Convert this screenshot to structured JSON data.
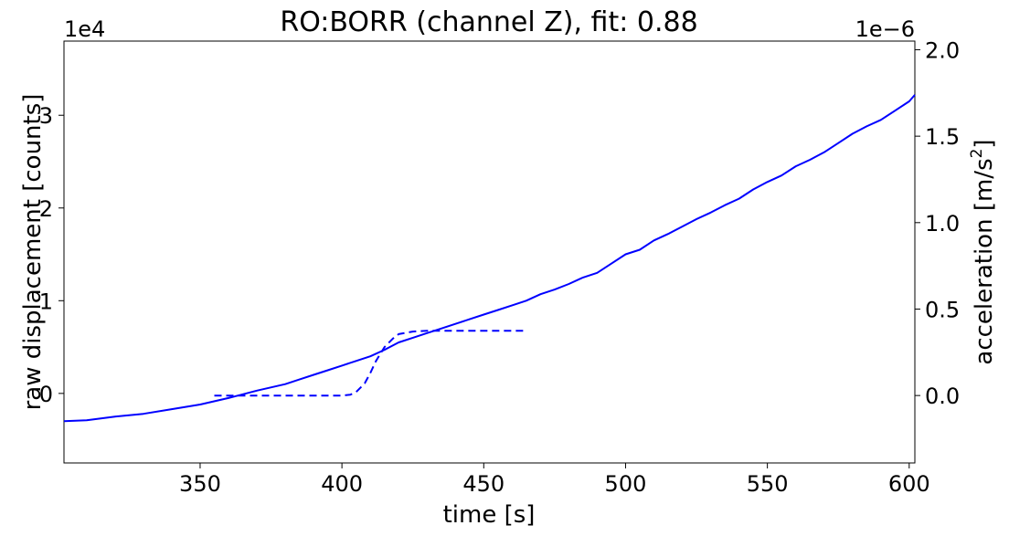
{
  "chart_data": {
    "type": "line",
    "title": "RO:BORR  (channel Z), fit: 0.88",
    "xlabel": "time [s]",
    "ylabel_left": "raw displacement [counts]",
    "ylabel_right_prefix": "acceleration [m/s",
    "ylabel_right_sup": "2",
    "ylabel_right_suffix": "]",
    "left_offset_label": "1e4",
    "right_offset_label": "1e−6",
    "xlim": [
      302,
      602
    ],
    "ylim_left": [
      -0.75,
      3.8
    ],
    "ylim_right": [
      -0.39,
      2.05
    ],
    "x_ticks": [
      350,
      400,
      450,
      500,
      550,
      600
    ],
    "x_tick_labels": [
      "350",
      "400",
      "450",
      "500",
      "550",
      "600"
    ],
    "y_left_ticks": [
      0,
      1,
      2,
      3
    ],
    "y_left_tick_labels": [
      "0",
      "1",
      "2",
      "3"
    ],
    "y_right_ticks": [
      0.0,
      0.5,
      1.0,
      1.5,
      2.0
    ],
    "y_right_tick_labels": [
      "0.0",
      "0.5",
      "1.0",
      "1.5",
      "2.0"
    ],
    "grid": false,
    "color": "#0000ff",
    "series": [
      {
        "axis": "left",
        "style": "solid",
        "x": [
          302,
          310,
          320,
          330,
          340,
          350,
          360,
          370,
          380,
          385,
          390,
          395,
          400,
          405,
          410,
          415,
          420,
          425,
          430,
          435,
          440,
          445,
          450,
          455,
          460,
          465,
          470,
          475,
          480,
          485,
          490,
          495,
          500,
          505,
          510,
          515,
          520,
          525,
          530,
          535,
          540,
          545,
          550,
          555,
          560,
          565,
          570,
          575,
          580,
          585,
          590,
          595,
          600,
          602
        ],
        "y": [
          -0.3,
          -0.29,
          -0.25,
          -0.22,
          -0.17,
          -0.12,
          -0.05,
          0.03,
          0.1,
          0.15,
          0.2,
          0.25,
          0.3,
          0.35,
          0.4,
          0.47,
          0.55,
          0.6,
          0.65,
          0.7,
          0.75,
          0.8,
          0.85,
          0.9,
          0.95,
          1.0,
          1.07,
          1.12,
          1.18,
          1.25,
          1.3,
          1.4,
          1.5,
          1.55,
          1.65,
          1.72,
          1.8,
          1.88,
          1.95,
          2.03,
          2.1,
          2.2,
          2.28,
          2.35,
          2.45,
          2.52,
          2.6,
          2.7,
          2.8,
          2.88,
          2.95,
          3.05,
          3.15,
          3.22
        ]
      },
      {
        "axis": "right",
        "style": "dashed",
        "x": [
          355,
          360,
          370,
          380,
          390,
          400,
          403,
          405,
          408,
          410,
          412,
          415,
          418,
          420,
          425,
          430,
          440,
          450,
          460,
          465
        ],
        "y": [
          0.0,
          0.0,
          0.0,
          0.0,
          0.0,
          0.0,
          0.005,
          0.02,
          0.07,
          0.13,
          0.2,
          0.28,
          0.33,
          0.355,
          0.37,
          0.375,
          0.375,
          0.375,
          0.375,
          0.375
        ]
      }
    ]
  }
}
